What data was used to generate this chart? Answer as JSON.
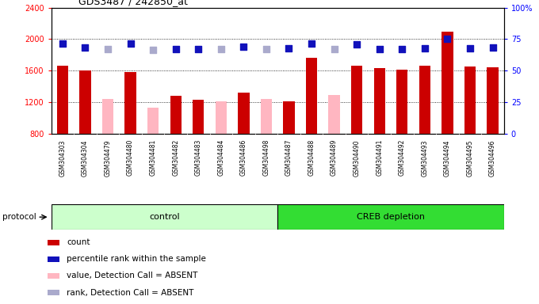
{
  "title": "GDS3487 / 242850_at",
  "samples": [
    "GSM304303",
    "GSM304304",
    "GSM304479",
    "GSM304480",
    "GSM304481",
    "GSM304482",
    "GSM304483",
    "GSM304484",
    "GSM304486",
    "GSM304498",
    "GSM304487",
    "GSM304488",
    "GSM304489",
    "GSM304490",
    "GSM304491",
    "GSM304492",
    "GSM304493",
    "GSM304494",
    "GSM304495",
    "GSM304496"
  ],
  "count_values": [
    1660,
    1600,
    null,
    1580,
    null,
    1280,
    1230,
    null,
    1320,
    null,
    1210,
    1760,
    null,
    1660,
    1630,
    1610,
    1660,
    2090,
    1650,
    1640
  ],
  "absent_values": [
    null,
    null,
    1240,
    null,
    1130,
    null,
    null,
    1210,
    null,
    1240,
    null,
    null,
    1290,
    null,
    null,
    null,
    null,
    null,
    null,
    null
  ],
  "rank_present": [
    1940,
    1890,
    null,
    1940,
    null,
    1870,
    1870,
    null,
    1900,
    null,
    1880,
    1940,
    null,
    1930,
    1870,
    1870,
    1880,
    2000,
    1880,
    1890
  ],
  "rank_absent": [
    null,
    null,
    1870,
    null,
    1860,
    null,
    null,
    1870,
    null,
    1870,
    null,
    null,
    1870,
    null,
    null,
    null,
    null,
    null,
    null,
    null
  ],
  "ylim_left": [
    800,
    2400
  ],
  "yticks_left": [
    800,
    1200,
    1600,
    2000,
    2400
  ],
  "yticks_right": [
    0,
    25,
    50,
    75,
    100
  ],
  "n_control": 10,
  "group_labels": [
    "control",
    "CREB depletion"
  ],
  "bar_color_present": "#CC0000",
  "bar_color_absent": "#FFB6C1",
  "dot_color_present": "#1111BB",
  "dot_color_absent": "#AAAACC",
  "group_bg_control": "#CCFFCC",
  "group_bg_creb": "#33DD33",
  "protocol_label": "protocol",
  "legend_items": [
    {
      "label": "count",
      "color": "#CC0000"
    },
    {
      "label": "percentile rank within the sample",
      "color": "#1111BB"
    },
    {
      "label": "value, Detection Call = ABSENT",
      "color": "#FFB6C1"
    },
    {
      "label": "rank, Detection Call = ABSENT",
      "color": "#AAAACC"
    }
  ],
  "grid_vals": [
    1200,
    1600,
    2000
  ],
  "xticklabel_bg": "#CCCCCC"
}
